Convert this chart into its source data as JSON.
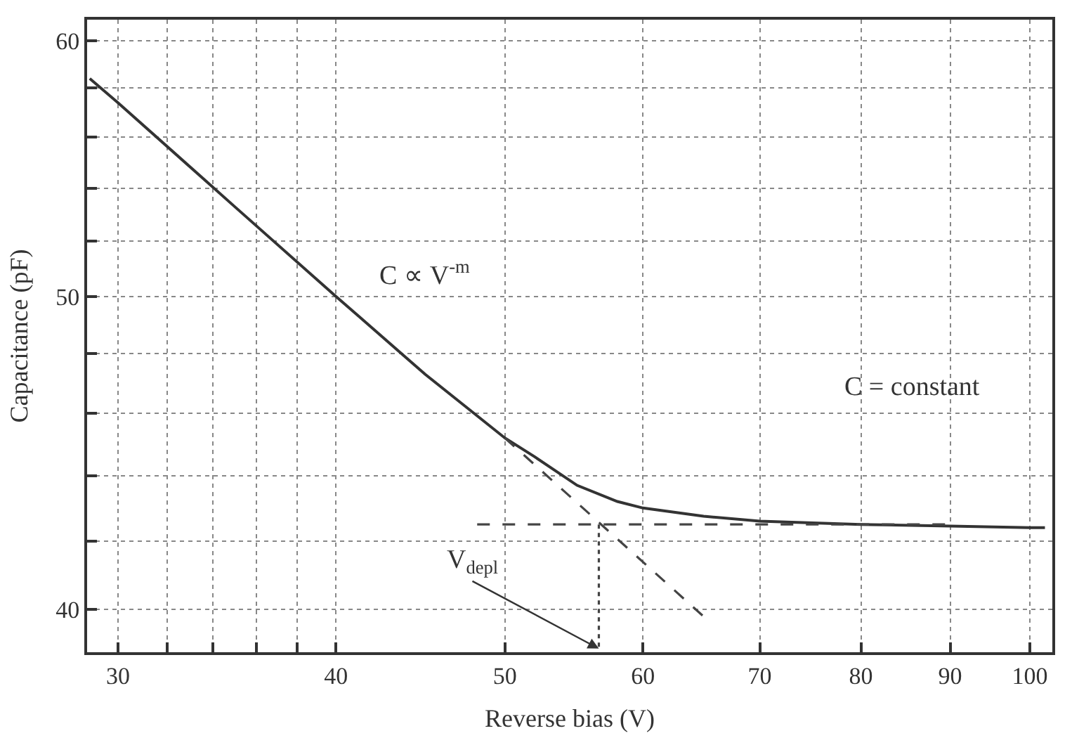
{
  "chart_data": {
    "type": "line",
    "xlabel": "Reverse bias (V)",
    "ylabel": "Capacitance (pF)",
    "log": "xy",
    "grid": true,
    "xlim": [
      28.8,
      103
    ],
    "ylim": [
      38.8,
      60.9
    ],
    "xticks": [
      30,
      {
        "value": 32,
        "label": null
      },
      {
        "value": 34,
        "label": null
      },
      {
        "value": 36,
        "label": null
      },
      {
        "value": 38,
        "label": null
      },
      40,
      50,
      60,
      70,
      80,
      90,
      100
    ],
    "yticks": [
      40,
      {
        "value": 42,
        "label": null
      },
      {
        "value": 44,
        "label": null
      },
      {
        "value": 46,
        "label": null
      },
      {
        "value": 48,
        "label": null
      },
      50,
      {
        "value": 52,
        "label": null
      },
      {
        "value": 54,
        "label": null
      },
      {
        "value": 56,
        "label": null
      },
      {
        "value": 58,
        "label": null
      },
      60
    ],
    "series": [
      {
        "color": "#333333",
        "line_style": "solid",
        "x": [
          28.9,
          30,
          35,
          40,
          45,
          50,
          52,
          55,
          58,
          60,
          65,
          70,
          80,
          90,
          100,
          102
        ],
        "values": [
          58.4,
          57.4,
          53.3,
          50,
          47.3,
          45.2,
          44.6,
          43.7,
          43.2,
          43.0,
          42.75,
          42.6,
          42.5,
          42.45,
          42.4,
          42.4
        ]
      },
      {
        "color": "#444444",
        "line_style": "dashed",
        "x": [
          50,
          65
        ],
        "values": [
          45.2,
          39.8
        ]
      },
      {
        "color": "#444444",
        "line_style": "dashed",
        "x": [
          48.2,
          90
        ],
        "values": [
          42.5,
          42.5
        ]
      },
      {
        "color": "#444444",
        "line_style": "dotted",
        "x": [
          56.6,
          56.6
        ],
        "values": [
          42.5,
          38.9
        ]
      }
    ],
    "annotations": [
      "C ∝ V$^{-m}$",
      "C = constant",
      {
        "text": "V$_{depl}$",
        "x": 56.6,
        "y": 38.9
      }
    ]
  }
}
